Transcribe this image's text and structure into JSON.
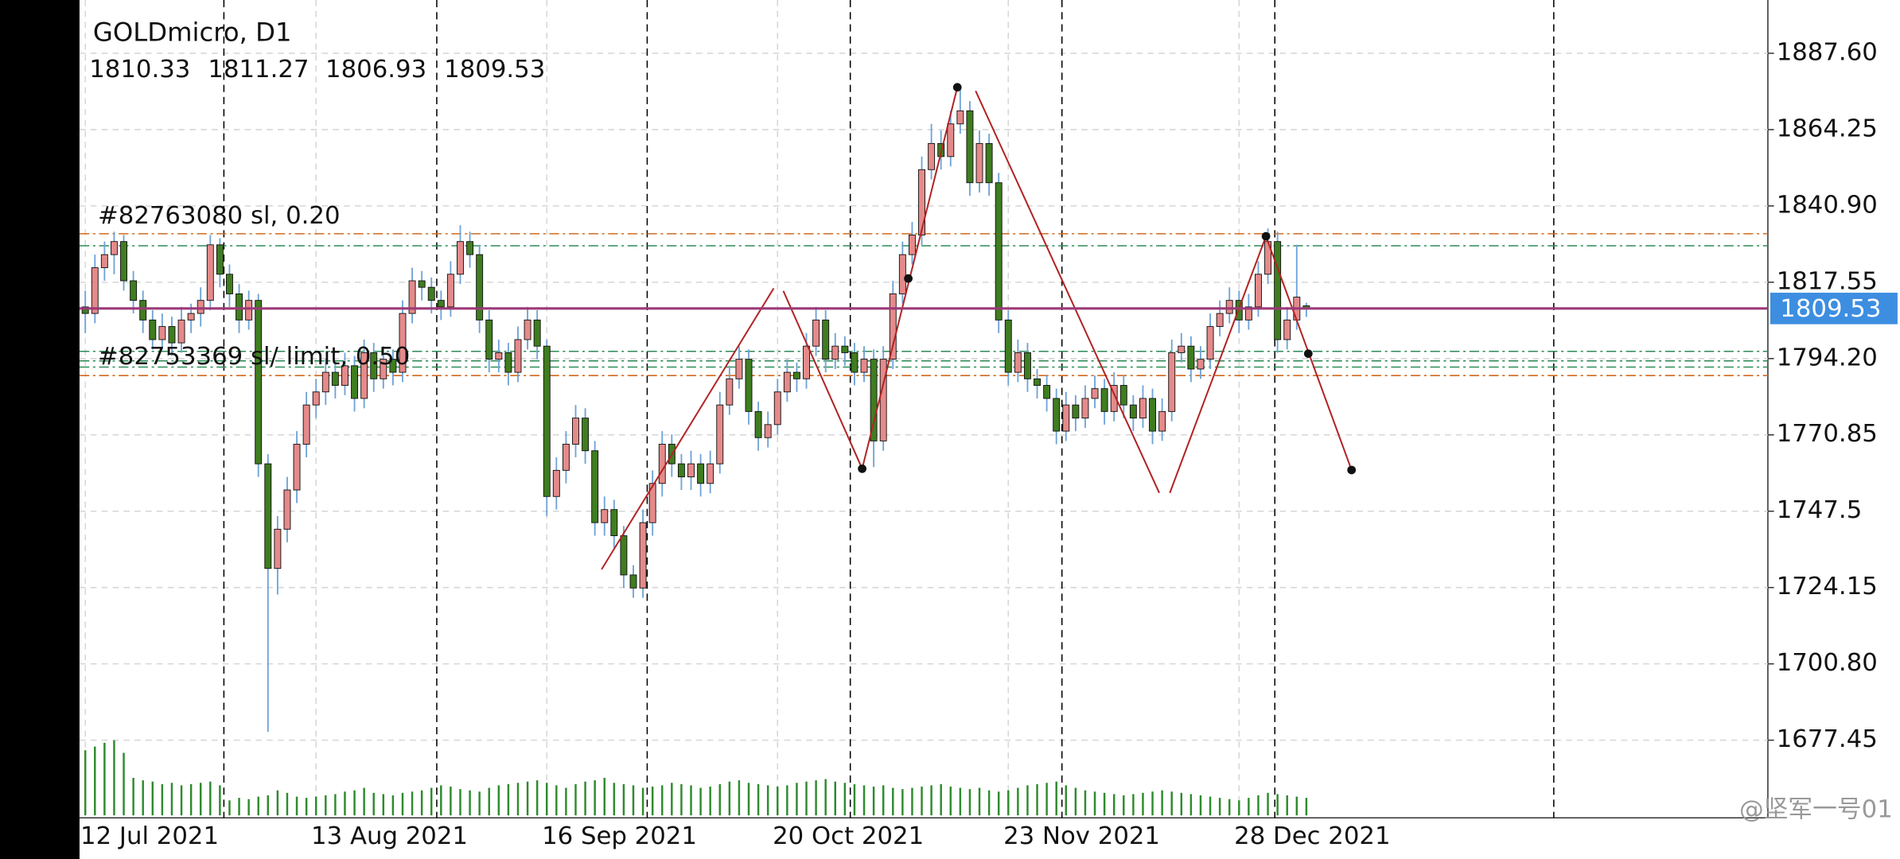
{
  "chart_data": {
    "type": "candlestick",
    "title": "GOLDmicro, D1",
    "xlim": [
      -0.6,
      175
    ],
    "ylim": [
      1653.7,
      1903.9
    ],
    "yticks": [
      {
        "value": 1887.6,
        "label": "1887.60"
      },
      1864.25,
      {
        "value": 1840.9,
        "label": "1840.90"
      },
      1817.55,
      {
        "value": 1794.2,
        "label": "1794.20"
      },
      1770.85,
      1747.5,
      1724.15,
      {
        "value": 1700.8,
        "label": "1700.80"
      },
      1677.45
    ],
    "xticks": [
      {
        "value": 0,
        "label": "12 Jul 2021"
      },
      {
        "value": 24,
        "label": "13 Aug 2021"
      },
      {
        "value": 48,
        "label": "16 Sep 2021"
      },
      {
        "value": 72,
        "label": "20 Oct 2021"
      },
      {
        "value": 96,
        "label": "23 Nov 2021"
      },
      {
        "value": 120,
        "label": "28 Dec 2021"
      }
    ],
    "grid": true,
    "up_color": "#e58a8a",
    "down_color": "#3f7d20",
    "wick_color": "#6fa3d8",
    "volume_color": "#2e8b2e",
    "price_line_color": "#9c3a78",
    "price_tag_color": "#3d8ee0",
    "ohlc": [
      [
        1810,
        1815,
        1802,
        1808
      ],
      [
        1808,
        1826,
        1805,
        1822
      ],
      [
        1822,
        1830,
        1818,
        1826
      ],
      [
        1826,
        1833,
        1820,
        1830
      ],
      [
        1830,
        1832,
        1815,
        1818
      ],
      [
        1818,
        1821,
        1808,
        1812
      ],
      [
        1812,
        1815,
        1802,
        1806
      ],
      [
        1806,
        1809,
        1797,
        1800
      ],
      [
        1800,
        1808,
        1797,
        1804
      ],
      [
        1804,
        1807,
        1795,
        1799
      ],
      [
        1799,
        1810,
        1796,
        1806
      ],
      [
        1806,
        1811,
        1802,
        1808
      ],
      [
        1808,
        1816,
        1804,
        1812
      ],
      [
        1812,
        1832,
        1809,
        1829
      ],
      [
        1829,
        1831,
        1816,
        1820
      ],
      [
        1820,
        1823,
        1810,
        1814
      ],
      [
        1814,
        1817,
        1802,
        1806
      ],
      [
        1806,
        1815,
        1803,
        1812
      ],
      [
        1812,
        1814,
        1758,
        1762
      ],
      [
        1762,
        1765,
        1680,
        1730
      ],
      [
        1730,
        1746,
        1722,
        1742
      ],
      [
        1742,
        1758,
        1738,
        1754
      ],
      [
        1754,
        1772,
        1750,
        1768
      ],
      [
        1768,
        1784,
        1764,
        1780
      ],
      [
        1780,
        1788,
        1776,
        1784
      ],
      [
        1784,
        1794,
        1780,
        1790
      ],
      [
        1790,
        1793,
        1782,
        1786
      ],
      [
        1786,
        1796,
        1783,
        1792
      ],
      [
        1792,
        1795,
        1778,
        1782
      ],
      [
        1782,
        1800,
        1779,
        1796
      ],
      [
        1796,
        1799,
        1784,
        1788
      ],
      [
        1788,
        1798,
        1785,
        1794
      ],
      [
        1794,
        1797,
        1786,
        1790
      ],
      [
        1790,
        1812,
        1787,
        1808
      ],
      [
        1808,
        1822,
        1805,
        1818
      ],
      [
        1818,
        1821,
        1812,
        1816
      ],
      [
        1816,
        1819,
        1808,
        1812
      ],
      [
        1812,
        1815,
        1806,
        1810
      ],
      [
        1810,
        1824,
        1807,
        1820
      ],
      [
        1820,
        1835,
        1817,
        1830
      ],
      [
        1830,
        1833,
        1822,
        1826
      ],
      [
        1826,
        1829,
        1802,
        1806
      ],
      [
        1806,
        1809,
        1790,
        1794
      ],
      [
        1794,
        1800,
        1790,
        1796
      ],
      [
        1796,
        1799,
        1786,
        1790
      ],
      [
        1790,
        1804,
        1787,
        1800
      ],
      [
        1800,
        1810,
        1797,
        1806
      ],
      [
        1806,
        1809,
        1794,
        1798
      ],
      [
        1798,
        1800,
        1746,
        1752
      ],
      [
        1752,
        1764,
        1748,
        1760
      ],
      [
        1760,
        1772,
        1756,
        1768
      ],
      [
        1768,
        1780,
        1764,
        1776
      ],
      [
        1776,
        1779,
        1762,
        1766
      ],
      [
        1766,
        1769,
        1740,
        1744
      ],
      [
        1744,
        1752,
        1740,
        1748
      ],
      [
        1748,
        1751,
        1736,
        1740
      ],
      [
        1740,
        1743,
        1724,
        1728
      ],
      [
        1728,
        1731,
        1721,
        1724
      ],
      [
        1724,
        1748,
        1721,
        1744
      ],
      [
        1744,
        1760,
        1740,
        1756
      ],
      [
        1756,
        1772,
        1752,
        1768
      ],
      [
        1768,
        1771,
        1758,
        1762
      ],
      [
        1762,
        1765,
        1754,
        1758
      ],
      [
        1758,
        1766,
        1754,
        1762
      ],
      [
        1762,
        1765,
        1752,
        1756
      ],
      [
        1756,
        1766,
        1753,
        1762
      ],
      [
        1762,
        1784,
        1759,
        1780
      ],
      [
        1780,
        1792,
        1777,
        1788
      ],
      [
        1788,
        1798,
        1785,
        1794
      ],
      [
        1794,
        1797,
        1774,
        1778
      ],
      [
        1778,
        1781,
        1766,
        1770
      ],
      [
        1770,
        1778,
        1767,
        1774
      ],
      [
        1774,
        1788,
        1771,
        1784
      ],
      [
        1784,
        1794,
        1781,
        1790
      ],
      [
        1790,
        1793,
        1784,
        1788
      ],
      [
        1788,
        1802,
        1785,
        1798
      ],
      [
        1798,
        1810,
        1795,
        1806
      ],
      [
        1806,
        1809,
        1790,
        1794
      ],
      [
        1794,
        1802,
        1791,
        1798
      ],
      [
        1798,
        1801,
        1792,
        1796
      ],
      [
        1796,
        1799,
        1786,
        1790
      ],
      [
        1790,
        1798,
        1787,
        1794
      ],
      [
        1794,
        1797,
        1761,
        1769
      ],
      [
        1769,
        1798,
        1766,
        1794
      ],
      [
        1794,
        1818,
        1791,
        1814
      ],
      [
        1814,
        1830,
        1811,
        1826
      ],
      [
        1826,
        1836,
        1823,
        1832
      ],
      [
        1832,
        1856,
        1829,
        1852
      ],
      [
        1852,
        1866,
        1849,
        1860
      ],
      [
        1860,
        1864,
        1852,
        1856
      ],
      [
        1856,
        1870,
        1853,
        1866
      ],
      [
        1866,
        1877,
        1863,
        1870
      ],
      [
        1870,
        1873,
        1844,
        1848
      ],
      [
        1848,
        1864,
        1845,
        1860
      ],
      [
        1860,
        1863,
        1844,
        1848
      ],
      [
        1848,
        1851,
        1802,
        1806
      ],
      [
        1806,
        1809,
        1786,
        1790
      ],
      [
        1790,
        1800,
        1787,
        1796
      ],
      [
        1796,
        1799,
        1784,
        1788
      ],
      [
        1788,
        1791,
        1782,
        1786
      ],
      [
        1786,
        1789,
        1778,
        1782
      ],
      [
        1782,
        1785,
        1768,
        1772
      ],
      [
        1772,
        1784,
        1769,
        1780
      ],
      [
        1780,
        1783,
        1772,
        1776
      ],
      [
        1776,
        1786,
        1773,
        1782
      ],
      [
        1782,
        1789,
        1779,
        1785
      ],
      [
        1785,
        1788,
        1774,
        1778
      ],
      [
        1778,
        1790,
        1775,
        1786
      ],
      [
        1786,
        1789,
        1776,
        1780
      ],
      [
        1780,
        1783,
        1772,
        1776
      ],
      [
        1776,
        1786,
        1773,
        1782
      ],
      [
        1782,
        1785,
        1768,
        1772
      ],
      [
        1772,
        1782,
        1769,
        1778
      ],
      [
        1778,
        1800,
        1775,
        1796
      ],
      [
        1796,
        1802,
        1793,
        1798
      ],
      [
        1798,
        1801,
        1787,
        1791
      ],
      [
        1791,
        1798,
        1788,
        1794
      ],
      [
        1794,
        1808,
        1791,
        1804
      ],
      [
        1804,
        1812,
        1801,
        1808
      ],
      [
        1808,
        1816,
        1805,
        1812
      ],
      [
        1812,
        1815,
        1802,
        1806
      ],
      [
        1806,
        1814,
        1803,
        1810
      ],
      [
        1810,
        1824,
        1807,
        1820
      ],
      [
        1820,
        1834,
        1817,
        1830
      ],
      [
        1830,
        1833,
        1796,
        1800
      ],
      [
        1800,
        1810,
        1797,
        1806
      ],
      [
        1806,
        1829,
        1803,
        1813
      ],
      [
        1810.33,
        1811.27,
        1806.93,
        1809.53
      ]
    ],
    "volume": [
      52,
      55,
      58,
      60,
      50,
      30,
      28,
      27,
      25,
      26,
      24,
      25,
      26,
      27,
      24,
      12,
      14,
      13,
      15,
      16,
      20,
      18,
      15,
      14,
      15,
      16,
      17,
      19,
      20,
      22,
      18,
      17,
      16,
      18,
      19,
      20,
      22,
      24,
      23,
      21,
      20,
      19,
      22,
      24,
      25,
      26,
      27,
      28,
      26,
      24,
      22,
      25,
      27,
      28,
      30,
      26,
      25,
      24,
      22,
      23,
      24,
      26,
      25,
      24,
      22,
      23,
      25,
      27,
      28,
      26,
      25,
      24,
      23,
      24,
      26,
      27,
      28,
      29,
      27,
      26,
      25,
      24,
      23,
      24,
      22,
      21,
      22,
      23,
      24,
      25,
      23,
      22,
      21,
      22,
      20,
      19,
      20,
      22,
      24,
      25,
      26,
      27,
      24,
      22,
      20,
      19,
      18,
      17,
      16,
      17,
      18,
      19,
      20,
      19,
      18,
      17,
      16,
      15,
      14,
      13,
      12,
      14,
      16,
      18,
      17,
      16,
      15,
      14
    ],
    "levels": [
      {
        "price": 1832.4,
        "color": "#d2691e"
      },
      {
        "price": 1828.7,
        "color": "#2e8b57"
      },
      {
        "price": 1796.4,
        "color": "#2e8b57"
      },
      {
        "price": 1793.5,
        "color": "#2e8b57"
      },
      {
        "price": 1791.6,
        "color": "#2e8b57"
      },
      {
        "price": 1789.0,
        "color": "#d2691e"
      }
    ],
    "trendlines": [
      [
        53.7,
        1729.7,
        71.6,
        1815.7
      ],
      [
        72.6,
        1814.9,
        80.8,
        1760.5
      ],
      [
        80.8,
        1760.5,
        90.7,
        1877.2
      ],
      [
        92.6,
        1876.1,
        111.7,
        1753.1
      ],
      [
        112.8,
        1753.1,
        122.8,
        1831.6
      ],
      [
        122.8,
        1831.6,
        131.7,
        1760.1
      ]
    ],
    "trendline_color": "#b22222",
    "points": [
      [
        90.7,
        1877.2
      ],
      [
        80.8,
        1760.5
      ],
      [
        85.6,
        1818.7
      ],
      [
        122.8,
        1831.6
      ],
      [
        127.2,
        1795.7
      ],
      [
        131.7,
        1760.1
      ]
    ],
    "annotations": [
      "#82763080 sl, 0.20",
      "#82753369 sl/ limit, 0.50"
    ],
    "watermark": "@坚军一号01"
  }
}
